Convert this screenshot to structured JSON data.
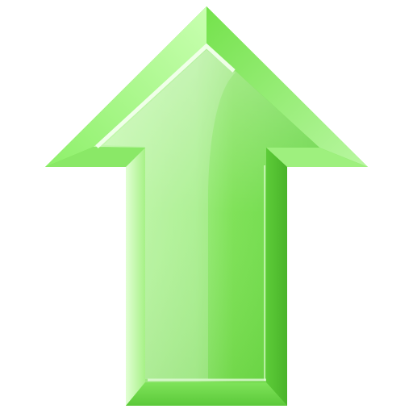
{
  "icon": {
    "name": "arrow-up-icon",
    "colors": {
      "bevel_light": "#c9ffb0",
      "bevel_mid": "#7fe85a",
      "bevel_dark": "#4fbe2c",
      "face_light": "#b6f59a",
      "face_mid": "#7fe25a",
      "face_dark": "#59c93a",
      "edge_stroke": "#5ccd3b",
      "highlight": "#e9ffde"
    }
  }
}
